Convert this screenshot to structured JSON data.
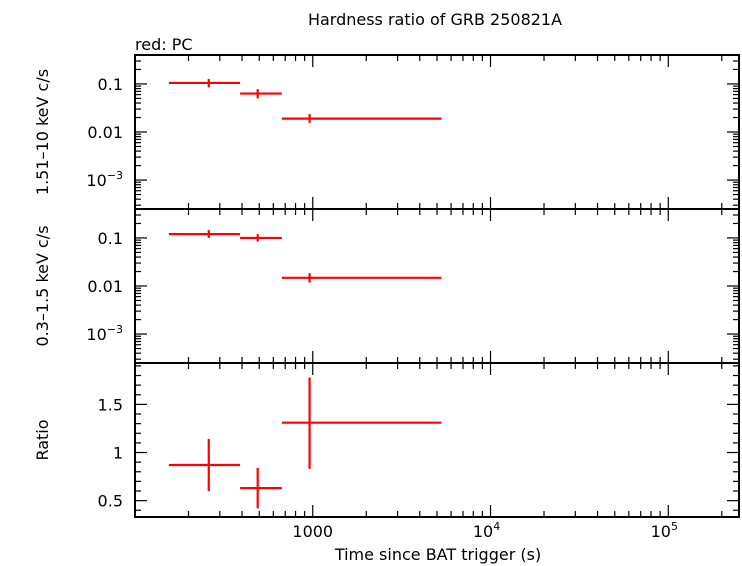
{
  "chart_data": {
    "type": "scatter",
    "title": "Hardness ratio of GRB 250821A",
    "subtitle": "red: PC",
    "xlabel": "Time since BAT trigger (s)",
    "xscale": "log",
    "xlim": [
      100,
      250000
    ],
    "x_ticks": [
      {
        "value": 1000,
        "label": "1000"
      },
      {
        "value": 10000,
        "base": "10",
        "exp": "4"
      },
      {
        "value": 100000,
        "base": "10",
        "exp": "5"
      }
    ],
    "color": "#ff0000",
    "panels": [
      {
        "name": "hard",
        "ylabel": "1.51–10 keV c/s",
        "yscale": "log",
        "ylim": [
          0.00025,
          0.4
        ],
        "y_ticks": [
          {
            "value": 0.1,
            "label": "0.1"
          },
          {
            "value": 0.01,
            "label": "0.01"
          },
          {
            "value": 0.001,
            "base": "10",
            "exp": "−3"
          }
        ],
        "points": [
          {
            "x": 260,
            "x_lo": 155,
            "x_hi": 390,
            "y": 0.105,
            "y_lo": 0.085,
            "y_hi": 0.127
          },
          {
            "x": 490,
            "x_lo": 390,
            "x_hi": 670,
            "y": 0.063,
            "y_lo": 0.05,
            "y_hi": 0.078
          },
          {
            "x": 960,
            "x_lo": 670,
            "x_hi": 5300,
            "y": 0.019,
            "y_lo": 0.0155,
            "y_hi": 0.0235
          }
        ]
      },
      {
        "name": "soft",
        "ylabel": "0.3–1.5 keV c/s",
        "yscale": "log",
        "ylim": [
          0.00025,
          0.4
        ],
        "y_ticks": [
          {
            "value": 0.1,
            "label": "0.1"
          },
          {
            "value": 0.01,
            "label": "0.01"
          },
          {
            "value": 0.001,
            "base": "10",
            "exp": "−3"
          }
        ],
        "points": [
          {
            "x": 260,
            "x_lo": 155,
            "x_hi": 390,
            "y": 0.12,
            "y_lo": 0.1,
            "y_hi": 0.145
          },
          {
            "x": 490,
            "x_lo": 390,
            "x_hi": 670,
            "y": 0.1,
            "y_lo": 0.084,
            "y_hi": 0.12
          },
          {
            "x": 960,
            "x_lo": 670,
            "x_hi": 5300,
            "y": 0.0148,
            "y_lo": 0.0118,
            "y_hi": 0.0185
          }
        ]
      },
      {
        "name": "ratio",
        "ylabel": "Ratio",
        "yscale": "linear",
        "ylim": [
          0.33,
          1.93
        ],
        "y_ticks": [
          {
            "value": 0.5,
            "label": "0.5"
          },
          {
            "value": 1,
            "label": "1"
          },
          {
            "value": 1.5,
            "label": "1.5"
          }
        ],
        "points": [
          {
            "x": 260,
            "x_lo": 155,
            "x_hi": 390,
            "y": 0.87,
            "y_lo": 0.6,
            "y_hi": 1.14
          },
          {
            "x": 490,
            "x_lo": 390,
            "x_hi": 670,
            "y": 0.63,
            "y_lo": 0.42,
            "y_hi": 0.84
          },
          {
            "x": 960,
            "x_lo": 670,
            "x_hi": 5300,
            "y": 1.31,
            "y_lo": 0.83,
            "y_hi": 1.78
          }
        ]
      }
    ]
  }
}
